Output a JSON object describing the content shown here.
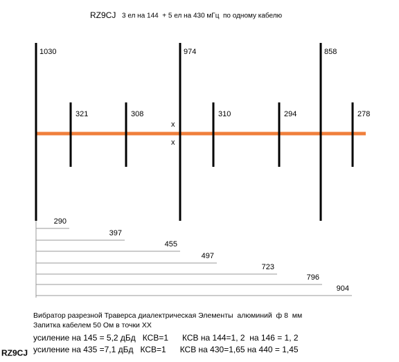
{
  "header": {
    "callsign": "RZ9CJ",
    "title": "3 ел на 144  + 5 ел на 430 мГц  по одному кабелю"
  },
  "elements_144": [
    1030,
    974,
    858
  ],
  "elements_430": [
    321,
    308,
    310,
    294,
    278
  ],
  "feed_marks": [
    "x",
    "x"
  ],
  "spacings": [
    290,
    397,
    455,
    497,
    723,
    796,
    904
  ],
  "notes": [
    "Вибратор разрезной Траверса диалектрическая Элементы  алюминий  ф 8  мм",
    "Запитка кабелем 50 Ом в точки ХХ",
    "усиление на 145 = 5,2 дБд   КСВ=1      КСВ на 144=1, 2  на 146 = 1, 2",
    "усиление на 435 =7,1 дБд   КСВ=1      КСВ на 430=1,65 на 440 = 1,45"
  ],
  "watermark": "RZ9CJ"
}
